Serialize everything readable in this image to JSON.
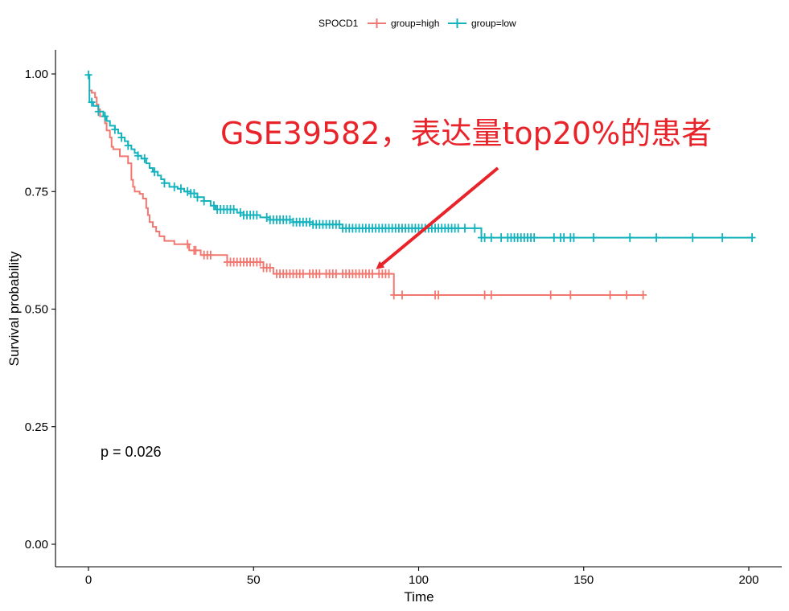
{
  "chart_data": {
    "type": "line",
    "subtype": "kaplan-meier",
    "title": "",
    "xlabel": "Time",
    "ylabel": "Survival probability",
    "xlim": [
      -10,
      210
    ],
    "ylim": [
      -0.05,
      1.05
    ],
    "xticks": [
      0,
      50,
      100,
      150,
      200
    ],
    "yticks": [
      0,
      0.25,
      0.5,
      0.75,
      1.0
    ],
    "yticklabels": [
      "0.00",
      "0.25",
      "0.50",
      "0.75",
      "1.00"
    ],
    "grid": false,
    "legend": {
      "position": "top",
      "title": "SPOCD1",
      "entries": [
        "group=high",
        "group=low"
      ]
    },
    "p_value_text": "p = 0.026",
    "annotation": {
      "text": "GSE39582，表达量top20%的患者",
      "color": "#e8232a",
      "arrow_from": [
        124,
        0.8
      ],
      "arrow_to": [
        88,
        0.59
      ]
    },
    "series": [
      {
        "name": "group=high",
        "color": "#f07870",
        "steps": [
          [
            0,
            0.965
          ],
          [
            1,
            0.96
          ],
          [
            2,
            0.95
          ],
          [
            2.5,
            0.935
          ],
          [
            3,
            0.925
          ],
          [
            3.5,
            0.91
          ],
          [
            5,
            0.895
          ],
          [
            5.5,
            0.88
          ],
          [
            6.5,
            0.865
          ],
          [
            7,
            0.845
          ],
          [
            7.5,
            0.84
          ],
          [
            9.5,
            0.825
          ],
          [
            12,
            0.81
          ],
          [
            13,
            0.775
          ],
          [
            13.5,
            0.76
          ],
          [
            14,
            0.75
          ],
          [
            15.5,
            0.745
          ],
          [
            16.5,
            0.735
          ],
          [
            17.5,
            0.715
          ],
          [
            18,
            0.7
          ],
          [
            18.5,
            0.685
          ],
          [
            19.5,
            0.675
          ],
          [
            20.5,
            0.665
          ],
          [
            21.5,
            0.655
          ],
          [
            23,
            0.645
          ],
          [
            26,
            0.638
          ],
          [
            30.5,
            0.625
          ],
          [
            34,
            0.615
          ],
          [
            42,
            0.6
          ],
          [
            53,
            0.588
          ],
          [
            56,
            0.575
          ],
          [
            92.5,
            0.53
          ]
        ],
        "end": 168,
        "censor": [
          30,
          32,
          32.5,
          35,
          36,
          37,
          42,
          43,
          44,
          45,
          46,
          47,
          48,
          49,
          50,
          51,
          52,
          53,
          54,
          55,
          57,
          58,
          59,
          60,
          61,
          62,
          63,
          64,
          65,
          67,
          68,
          69,
          70,
          72,
          73,
          74,
          75,
          77,
          78,
          79,
          80,
          81,
          82,
          83,
          84,
          85,
          86,
          88,
          89,
          90,
          91,
          92.5,
          95,
          105,
          106,
          120,
          122,
          140,
          146,
          158,
          163,
          168
        ]
      },
      {
        "name": "group=low",
        "color": "#12b3bd",
        "steps": [
          [
            0,
            0.998
          ],
          [
            0.3,
            0.94
          ],
          [
            1.5,
            0.932
          ],
          [
            3,
            0.92
          ],
          [
            4.5,
            0.91
          ],
          [
            5.5,
            0.9
          ],
          [
            6.5,
            0.89
          ],
          [
            8,
            0.882
          ],
          [
            9,
            0.874
          ],
          [
            10,
            0.865
          ],
          [
            11,
            0.857
          ],
          [
            12,
            0.848
          ],
          [
            13,
            0.84
          ],
          [
            14,
            0.832
          ],
          [
            15,
            0.826
          ],
          [
            16,
            0.82
          ],
          [
            17.5,
            0.81
          ],
          [
            18.5,
            0.8
          ],
          [
            19.5,
            0.792
          ],
          [
            21,
            0.784
          ],
          [
            22,
            0.776
          ],
          [
            23,
            0.768
          ],
          [
            24.5,
            0.76
          ],
          [
            27,
            0.756
          ],
          [
            29,
            0.75
          ],
          [
            31,
            0.746
          ],
          [
            33,
            0.738
          ],
          [
            35,
            0.73
          ],
          [
            37,
            0.72
          ],
          [
            38.5,
            0.712
          ],
          [
            45,
            0.705
          ],
          [
            47,
            0.7
          ],
          [
            52,
            0.695
          ],
          [
            55,
            0.69
          ],
          [
            62,
            0.685
          ],
          [
            68,
            0.68
          ],
          [
            77,
            0.672
          ],
          [
            119,
            0.652
          ]
        ],
        "end": 201,
        "censor": [
          0,
          1,
          3,
          5,
          8,
          10,
          12,
          15,
          17,
          20,
          23,
          26,
          28,
          30,
          31,
          32,
          33,
          35,
          38,
          39,
          40,
          41,
          42,
          43,
          44,
          46,
          47,
          48,
          49,
          50,
          51,
          54,
          55,
          56,
          57,
          58,
          59,
          60,
          61,
          62,
          63,
          64,
          65,
          66,
          67,
          68,
          69,
          70,
          71,
          72,
          73,
          74,
          75,
          76,
          77,
          78,
          79,
          80,
          81,
          82,
          83,
          84,
          85,
          86,
          87,
          88,
          89,
          90,
          91,
          92,
          93,
          94,
          95,
          96,
          97,
          98,
          99,
          100,
          101,
          102,
          103,
          104,
          105,
          106,
          107,
          108,
          109,
          110,
          111,
          112,
          114,
          117,
          119,
          120,
          122,
          125,
          127,
          128,
          129,
          130,
          131,
          132,
          133,
          134,
          135,
          141,
          143,
          144,
          146,
          147,
          153,
          164,
          172,
          183,
          192,
          201
        ]
      }
    ]
  }
}
